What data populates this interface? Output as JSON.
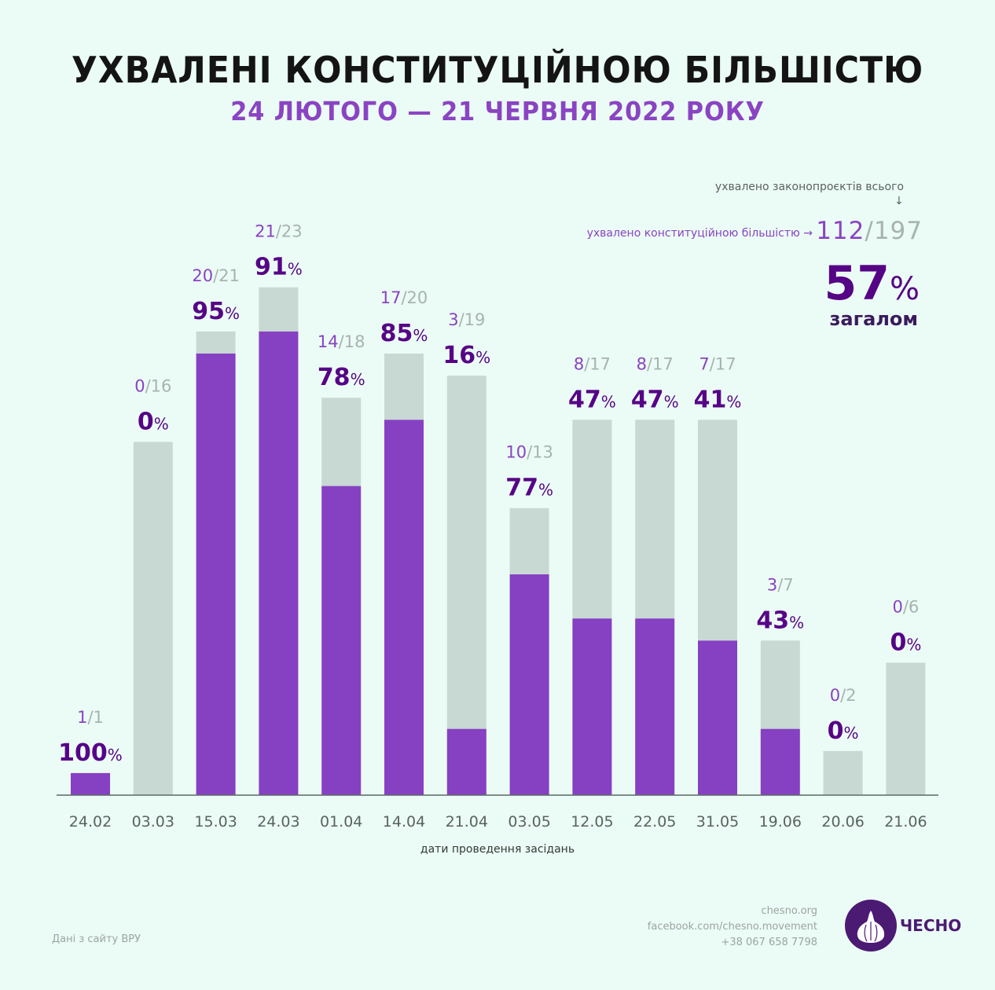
{
  "header": {
    "title": "УХВАЛЕНІ КОНСТИТУЦІЙНОЮ БІЛЬШІСТЮ",
    "subtitle": "24 ЛЮТОГО — 21 ЧЕРВНЯ 2022 РОКУ"
  },
  "summary": {
    "total_label": "ухвалено законопроєктів всього",
    "down_arrow": "↓",
    "constitutional_label": "ухвалено конституційною більшістю →",
    "approved": "112",
    "separator": "/",
    "total": "197",
    "percent": "57",
    "percent_sign": "%",
    "caption": "загалом"
  },
  "colors": {
    "background": "#ebfbf5",
    "approved_bar": "#8640c2",
    "total_bar": "#c8d8d3",
    "percent_text": "#560486",
    "approved_text": "#8a44c2",
    "total_text": "#a8b3af",
    "axis": "#5a6b64",
    "tick_text": "#5a6360"
  },
  "chart_data": {
    "type": "bar",
    "stacked": true,
    "title": "УХВАЛЕНІ КОНСТИТУЦІЙНОЮ БІЛЬШІСТЮ",
    "subtitle": "24 ЛЮТОГО — 21 ЧЕРВНЯ 2022 РОКУ",
    "xlabel": "дати проведення засідань",
    "ylabel": "",
    "ylim": [
      0,
      23
    ],
    "grid": false,
    "categories": [
      "24.02",
      "03.03",
      "15.03",
      "24.03",
      "01.04",
      "14.04",
      "21.04",
      "03.05",
      "12.05",
      "22.05",
      "31.05",
      "19.06",
      "20.06",
      "21.06"
    ],
    "series": [
      {
        "name": "ухвалено конституційною більшістю",
        "values": [
          1,
          0,
          20,
          21,
          14,
          17,
          3,
          10,
          8,
          8,
          7,
          3,
          0,
          0
        ]
      },
      {
        "name": "ухвалено законопроєктів всього",
        "values": [
          1,
          16,
          21,
          23,
          18,
          20,
          19,
          13,
          17,
          17,
          17,
          7,
          2,
          6
        ]
      }
    ],
    "percent_labels": [
      "100",
      "0",
      "95",
      "91",
      "78",
      "85",
      "16",
      "77",
      "47",
      "47",
      "41",
      "43",
      "0",
      "0"
    ],
    "percent_sign": "%"
  },
  "footer": {
    "source": "Дані з сайту ВРУ",
    "contacts": [
      "chesno.org",
      "facebook.com/chesno.movement",
      "+38 067 658 7798"
    ],
    "logo_text": "ЧЕСНО"
  }
}
